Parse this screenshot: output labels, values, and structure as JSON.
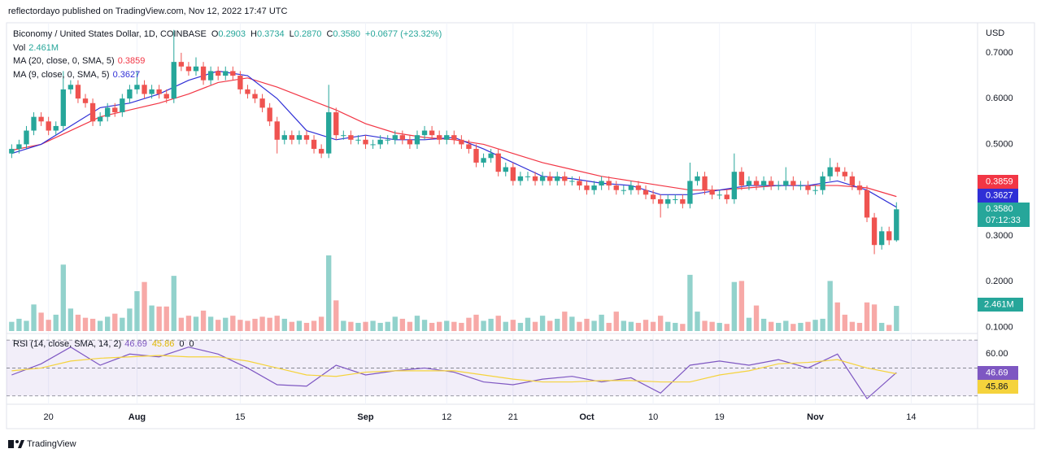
{
  "chart_data": {
    "type": "candlestick",
    "published": "reflectordayo published on TradingView.com, Nov 12, 2022 17:47 UTC",
    "title": "Biconomy / United States Dollar, 1D, COINBASE",
    "ohlc_fields": [
      {
        "label": "O",
        "value": "0.2903"
      },
      {
        "label": "H",
        "value": "0.3734"
      },
      {
        "label": "L",
        "value": "0.2870"
      },
      {
        "label": "C",
        "value": "0.3580"
      }
    ],
    "change": "+0.0677 (+23.32%)",
    "currency": "USD",
    "footer": "TradingView",
    "xlim": [
      -0.7,
      131
    ],
    "xticks": [
      {
        "value": 5,
        "label": "20"
      },
      {
        "value": 17,
        "label": "Aug"
      },
      {
        "value": 31,
        "label": "15"
      },
      {
        "value": 48,
        "label": "Sep"
      },
      {
        "value": 59,
        "label": "12"
      },
      {
        "value": 68,
        "label": "21"
      },
      {
        "value": 78,
        "label": "Oct"
      },
      {
        "value": 87,
        "label": "10"
      },
      {
        "value": 96,
        "label": "19"
      },
      {
        "value": 109,
        "label": "Nov"
      },
      {
        "value": 122,
        "label": "14"
      }
    ],
    "ylim": [
      0.092,
      0.762
    ],
    "yticks": [
      {
        "value": 0.7,
        "label": "0.7000"
      },
      {
        "value": 0.6,
        "label": "0.6000"
      },
      {
        "value": 0.5,
        "label": "0.5000"
      },
      {
        "value": 0.3,
        "label": "0.3000"
      },
      {
        "value": 0.2,
        "label": "0.2000"
      },
      {
        "value": 0.1,
        "label": "0.1000"
      }
    ],
    "grid": true,
    "up_color": "#26a69a",
    "down_color": "#ef5350",
    "candles": [
      [
        0.48,
        0.5,
        0.47,
        0.49
      ],
      [
        0.49,
        0.51,
        0.48,
        0.5
      ],
      [
        0.5,
        0.54,
        0.49,
        0.53
      ],
      [
        0.53,
        0.57,
        0.52,
        0.56
      ],
      [
        0.56,
        0.57,
        0.54,
        0.55
      ],
      [
        0.55,
        0.56,
        0.52,
        0.53
      ],
      [
        0.53,
        0.55,
        0.52,
        0.54
      ],
      [
        0.54,
        0.66,
        0.53,
        0.62
      ],
      [
        0.62,
        0.64,
        0.61,
        0.63
      ],
      [
        0.63,
        0.64,
        0.59,
        0.6
      ],
      [
        0.6,
        0.61,
        0.58,
        0.59
      ],
      [
        0.59,
        0.6,
        0.54,
        0.55
      ],
      [
        0.55,
        0.57,
        0.54,
        0.56
      ],
      [
        0.56,
        0.59,
        0.55,
        0.58
      ],
      [
        0.58,
        0.59,
        0.56,
        0.57
      ],
      [
        0.57,
        0.61,
        0.56,
        0.6
      ],
      [
        0.6,
        0.63,
        0.59,
        0.62
      ],
      [
        0.62,
        0.66,
        0.61,
        0.63
      ],
      [
        0.63,
        0.64,
        0.6,
        0.61
      ],
      [
        0.61,
        0.63,
        0.6,
        0.62
      ],
      [
        0.62,
        0.63,
        0.6,
        0.61
      ],
      [
        0.61,
        0.62,
        0.59,
        0.6
      ],
      [
        0.6,
        0.75,
        0.59,
        0.68
      ],
      [
        0.68,
        0.7,
        0.66,
        0.67
      ],
      [
        0.67,
        0.68,
        0.65,
        0.66
      ],
      [
        0.66,
        0.69,
        0.65,
        0.67
      ],
      [
        0.67,
        0.68,
        0.63,
        0.64
      ],
      [
        0.64,
        0.67,
        0.63,
        0.66
      ],
      [
        0.66,
        0.67,
        0.64,
        0.65
      ],
      [
        0.65,
        0.67,
        0.64,
        0.66
      ],
      [
        0.66,
        0.67,
        0.64,
        0.65
      ],
      [
        0.65,
        0.66,
        0.61,
        0.62
      ],
      [
        0.62,
        0.63,
        0.6,
        0.61
      ],
      [
        0.61,
        0.62,
        0.59,
        0.6
      ],
      [
        0.6,
        0.61,
        0.57,
        0.58
      ],
      [
        0.58,
        0.59,
        0.54,
        0.55
      ],
      [
        0.55,
        0.56,
        0.48,
        0.51
      ],
      [
        0.51,
        0.53,
        0.5,
        0.52
      ],
      [
        0.52,
        0.53,
        0.5,
        0.51
      ],
      [
        0.51,
        0.53,
        0.5,
        0.52
      ],
      [
        0.52,
        0.53,
        0.5,
        0.51
      ],
      [
        0.51,
        0.52,
        0.48,
        0.49
      ],
      [
        0.49,
        0.5,
        0.47,
        0.48
      ],
      [
        0.48,
        0.63,
        0.47,
        0.57
      ],
      [
        0.57,
        0.58,
        0.51,
        0.52
      ],
      [
        0.52,
        0.53,
        0.51,
        0.52
      ],
      [
        0.52,
        0.53,
        0.5,
        0.51
      ],
      [
        0.51,
        0.52,
        0.5,
        0.51
      ],
      [
        0.51,
        0.52,
        0.49,
        0.5
      ],
      [
        0.5,
        0.51,
        0.49,
        0.5
      ],
      [
        0.5,
        0.52,
        0.49,
        0.51
      ],
      [
        0.51,
        0.52,
        0.5,
        0.51
      ],
      [
        0.51,
        0.53,
        0.5,
        0.52
      ],
      [
        0.52,
        0.53,
        0.5,
        0.51
      ],
      [
        0.51,
        0.52,
        0.49,
        0.5
      ],
      [
        0.5,
        0.53,
        0.49,
        0.52
      ],
      [
        0.52,
        0.54,
        0.51,
        0.53
      ],
      [
        0.53,
        0.54,
        0.51,
        0.52
      ],
      [
        0.52,
        0.53,
        0.5,
        0.51
      ],
      [
        0.51,
        0.53,
        0.5,
        0.52
      ],
      [
        0.52,
        0.53,
        0.5,
        0.51
      ],
      [
        0.51,
        0.52,
        0.49,
        0.5
      ],
      [
        0.5,
        0.51,
        0.48,
        0.49
      ],
      [
        0.49,
        0.5,
        0.45,
        0.46
      ],
      [
        0.46,
        0.48,
        0.45,
        0.47
      ],
      [
        0.47,
        0.49,
        0.46,
        0.48
      ],
      [
        0.48,
        0.49,
        0.43,
        0.44
      ],
      [
        0.44,
        0.46,
        0.43,
        0.45
      ],
      [
        0.45,
        0.46,
        0.41,
        0.42
      ],
      [
        0.42,
        0.44,
        0.41,
        0.43
      ],
      [
        0.43,
        0.44,
        0.42,
        0.43
      ],
      [
        0.43,
        0.44,
        0.41,
        0.42
      ],
      [
        0.42,
        0.44,
        0.41,
        0.43
      ],
      [
        0.43,
        0.44,
        0.41,
        0.42
      ],
      [
        0.42,
        0.44,
        0.41,
        0.43
      ],
      [
        0.43,
        0.44,
        0.41,
        0.42
      ],
      [
        0.42,
        0.43,
        0.41,
        0.42
      ],
      [
        0.42,
        0.43,
        0.4,
        0.41
      ],
      [
        0.41,
        0.42,
        0.39,
        0.4
      ],
      [
        0.4,
        0.42,
        0.39,
        0.41
      ],
      [
        0.41,
        0.43,
        0.4,
        0.42
      ],
      [
        0.42,
        0.43,
        0.4,
        0.41
      ],
      [
        0.41,
        0.42,
        0.39,
        0.4
      ],
      [
        0.4,
        0.41,
        0.39,
        0.4
      ],
      [
        0.4,
        0.42,
        0.39,
        0.41
      ],
      [
        0.41,
        0.42,
        0.39,
        0.4
      ],
      [
        0.4,
        0.41,
        0.38,
        0.39
      ],
      [
        0.39,
        0.4,
        0.37,
        0.38
      ],
      [
        0.38,
        0.39,
        0.34,
        0.37
      ],
      [
        0.37,
        0.39,
        0.36,
        0.38
      ],
      [
        0.38,
        0.39,
        0.37,
        0.38
      ],
      [
        0.38,
        0.39,
        0.36,
        0.37
      ],
      [
        0.37,
        0.46,
        0.36,
        0.42
      ],
      [
        0.42,
        0.44,
        0.41,
        0.43
      ],
      [
        0.43,
        0.44,
        0.39,
        0.4
      ],
      [
        0.4,
        0.41,
        0.38,
        0.39
      ],
      [
        0.39,
        0.4,
        0.38,
        0.39
      ],
      [
        0.39,
        0.4,
        0.37,
        0.38
      ],
      [
        0.38,
        0.48,
        0.37,
        0.44
      ],
      [
        0.44,
        0.45,
        0.4,
        0.41
      ],
      [
        0.41,
        0.43,
        0.4,
        0.42
      ],
      [
        0.42,
        0.43,
        0.4,
        0.41
      ],
      [
        0.41,
        0.43,
        0.4,
        0.42
      ],
      [
        0.42,
        0.43,
        0.4,
        0.41
      ],
      [
        0.41,
        0.42,
        0.4,
        0.41
      ],
      [
        0.41,
        0.45,
        0.4,
        0.42
      ],
      [
        0.42,
        0.43,
        0.4,
        0.41
      ],
      [
        0.41,
        0.42,
        0.4,
        0.41
      ],
      [
        0.41,
        0.42,
        0.39,
        0.4
      ],
      [
        0.4,
        0.41,
        0.39,
        0.4
      ],
      [
        0.4,
        0.44,
        0.39,
        0.43
      ],
      [
        0.43,
        0.47,
        0.42,
        0.45
      ],
      [
        0.45,
        0.46,
        0.43,
        0.44
      ],
      [
        0.44,
        0.45,
        0.42,
        0.43
      ],
      [
        0.43,
        0.44,
        0.4,
        0.41
      ],
      [
        0.41,
        0.42,
        0.39,
        0.4
      ],
      [
        0.4,
        0.41,
        0.33,
        0.34
      ],
      [
        0.34,
        0.35,
        0.26,
        0.28
      ],
      [
        0.28,
        0.32,
        0.27,
        0.31
      ],
      [
        0.31,
        0.32,
        0.28,
        0.2903
      ],
      [
        0.2903,
        0.3734,
        0.287,
        0.358
      ]
    ],
    "volume": {
      "name": "Vol",
      "ylim": [
        0,
        30
      ],
      "value_label": "2.461M",
      "values": [
        0.9,
        1.2,
        1.0,
        2.6,
        1.8,
        1.1,
        1.6,
        6.5,
        2.2,
        1.6,
        1.3,
        1.2,
        1.0,
        1.4,
        1.7,
        1.3,
        2.2,
        3.9,
        4.8,
        2.5,
        2.4,
        2.4,
        5.4,
        1.3,
        1.5,
        1.4,
        2.0,
        1.4,
        1.1,
        1.3,
        1.5,
        1.1,
        1.0,
        1.2,
        1.4,
        1.3,
        1.5,
        1.2,
        0.9,
        1.0,
        0.8,
        1.0,
        1.4,
        7.4,
        3.0,
        1.0,
        0.9,
        0.8,
        0.9,
        1.0,
        0.8,
        0.9,
        1.4,
        1.2,
        0.9,
        1.5,
        1.1,
        0.8,
        0.9,
        1.0,
        0.9,
        0.8,
        1.3,
        1.6,
        1.0,
        1.2,
        1.5,
        0.9,
        1.1,
        0.8,
        1.3,
        0.9,
        1.5,
        1.0,
        1.2,
        1.9,
        1.4,
        0.9,
        1.2,
        1.0,
        1.6,
        0.8,
        1.9,
        1.0,
        0.9,
        0.8,
        1.1,
        0.9,
        1.5,
        0.9,
        0.8,
        0.7,
        5.5,
        1.9,
        1.0,
        0.9,
        0.8,
        0.7,
        4.8,
        4.9,
        1.3,
        2.5,
        1.2,
        0.9,
        0.8,
        1.0,
        0.7,
        0.8,
        0.9,
        1.1,
        1.2,
        4.9,
        2.8,
        1.6,
        0.9,
        0.8,
        2.8,
        2.6,
        0.8,
        0.6,
        2.461
      ]
    },
    "series": [
      {
        "name": "MA (20, close, 0, SMA, 5)",
        "value_label": "0.3859",
        "color": "#f23645",
        "x": [
          0,
          4,
          8,
          12,
          16,
          20,
          24,
          28,
          32,
          36,
          40,
          44,
          48,
          52,
          56,
          60,
          64,
          68,
          72,
          76,
          80,
          84,
          88,
          92,
          96,
          100,
          104,
          108,
          112,
          116,
          120
        ],
        "values": [
          0.487,
          0.5,
          0.53,
          0.56,
          0.575,
          0.59,
          0.61,
          0.635,
          0.645,
          0.625,
          0.6,
          0.575,
          0.545,
          0.525,
          0.515,
          0.51,
          0.5,
          0.48,
          0.46,
          0.445,
          0.43,
          0.42,
          0.41,
          0.4,
          0.4,
          0.405,
          0.41,
          0.41,
          0.41,
          0.405,
          0.3859
        ]
      },
      {
        "name": "MA (9, close, 0, SMA, 5)",
        "value_label": "0.3627",
        "color": "#2f2fd6",
        "x": [
          0,
          4,
          8,
          12,
          16,
          20,
          24,
          28,
          32,
          36,
          40,
          44,
          48,
          52,
          56,
          60,
          64,
          68,
          72,
          76,
          80,
          84,
          88,
          92,
          96,
          100,
          104,
          108,
          112,
          116,
          120
        ],
        "values": [
          0.48,
          0.5,
          0.54,
          0.58,
          0.59,
          0.61,
          0.64,
          0.66,
          0.65,
          0.6,
          0.53,
          0.51,
          0.52,
          0.51,
          0.51,
          0.515,
          0.49,
          0.46,
          0.43,
          0.425,
          0.415,
          0.41,
          0.39,
          0.39,
          0.4,
          0.41,
          0.41,
          0.41,
          0.42,
          0.4,
          0.3627
        ]
      }
    ],
    "price_badge": {
      "label": "0.3580",
      "countdown": "07:12:33"
    },
    "rsi": {
      "name": "RSI (14, close, SMA, 14, 2)",
      "ylim": [
        24,
        73
      ],
      "levels": [
        30,
        50,
        70
      ],
      "band": [
        30,
        70
      ],
      "yticks": [
        {
          "value": 60,
          "label": "60.00"
        }
      ],
      "extra_labels": [
        "0",
        "0"
      ],
      "series": [
        {
          "name": "RSI",
          "value_label": "46.69",
          "color": "#7e57c2",
          "x": [
            0,
            4,
            8,
            12,
            16,
            20,
            24,
            28,
            32,
            36,
            40,
            44,
            48,
            52,
            56,
            60,
            64,
            68,
            72,
            76,
            80,
            84,
            88,
            92,
            96,
            100,
            104,
            108,
            112,
            116,
            120
          ],
          "values": [
            45,
            53,
            65,
            52,
            60,
            58,
            65,
            60,
            50,
            38,
            37,
            52,
            45,
            48,
            50,
            47,
            40,
            38,
            42,
            44,
            40,
            43,
            32,
            52,
            55,
            52,
            56,
            50,
            60,
            28,
            46.69
          ]
        },
        {
          "name": "RSI MA",
          "value_label": "45.86",
          "color": "#f5d33c",
          "x": [
            0,
            4,
            8,
            12,
            16,
            20,
            24,
            28,
            32,
            36,
            40,
            44,
            48,
            52,
            56,
            60,
            64,
            68,
            72,
            76,
            80,
            84,
            88,
            92,
            96,
            100,
            104,
            108,
            112,
            116,
            120
          ],
          "values": [
            48,
            50,
            55,
            57,
            58,
            59,
            58,
            58,
            55,
            50,
            45,
            44,
            47,
            48,
            48,
            48,
            45,
            42,
            40,
            40,
            41,
            41,
            40,
            40,
            45,
            48,
            53,
            54,
            56,
            50,
            45.86
          ]
        }
      ]
    }
  }
}
